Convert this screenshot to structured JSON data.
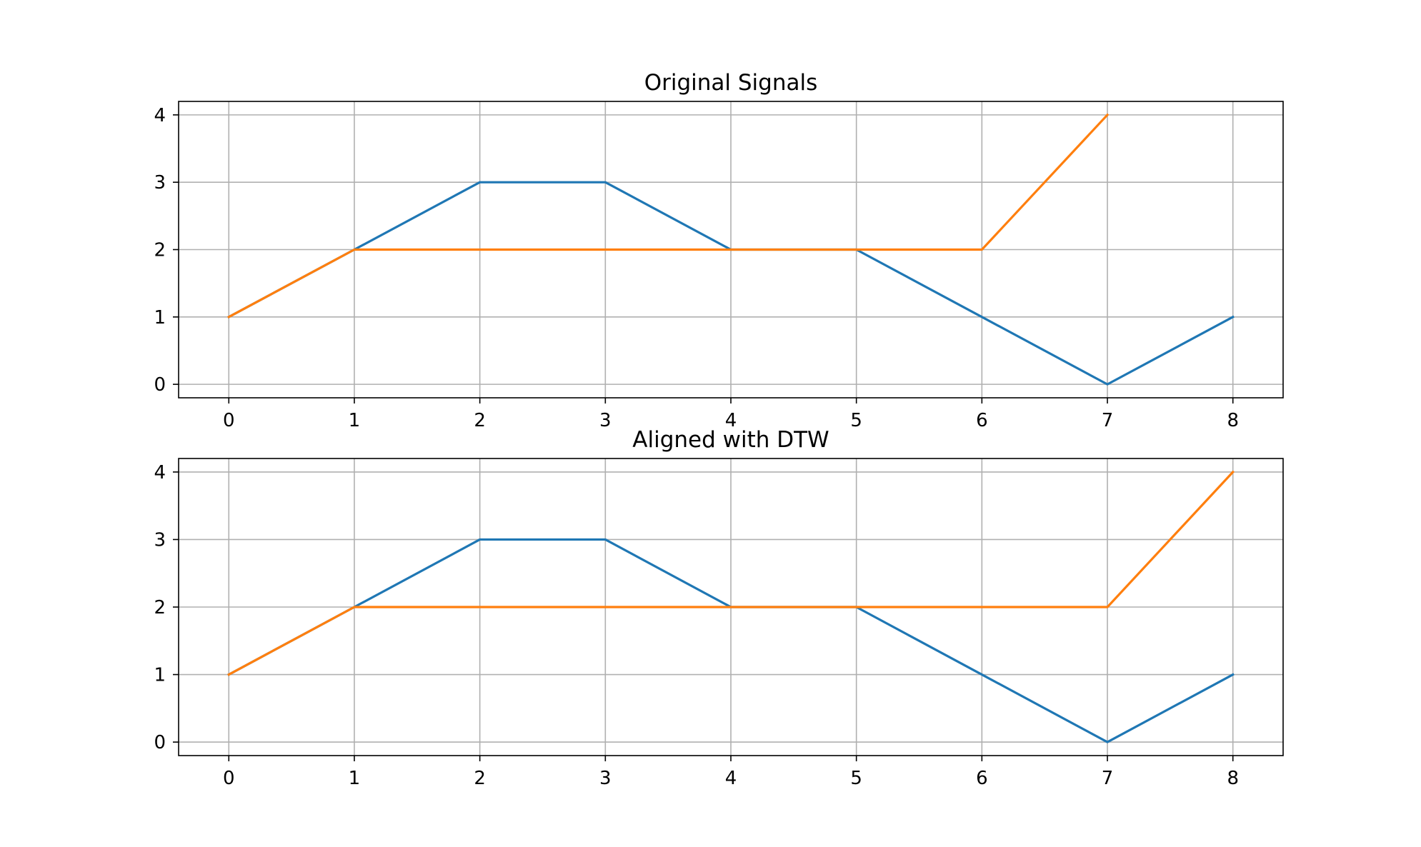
{
  "chart_data": [
    {
      "type": "line",
      "title": "Original Signals",
      "xlabel": "",
      "ylabel": "",
      "xlim": [
        -0.4,
        8.4
      ],
      "ylim": [
        -0.2,
        4.2
      ],
      "xticks": [
        0,
        1,
        2,
        3,
        4,
        5,
        6,
        7,
        8
      ],
      "yticks": [
        0,
        1,
        2,
        3,
        4
      ],
      "grid": true,
      "series": [
        {
          "color": "#1f77b4",
          "x": [
            0,
            1,
            2,
            3,
            4,
            5,
            6,
            7,
            8
          ],
          "y": [
            1,
            2,
            3,
            3,
            2,
            2,
            1,
            0,
            1
          ]
        },
        {
          "color": "#ff7f0e",
          "x": [
            0,
            1,
            2,
            3,
            4,
            5,
            6,
            7
          ],
          "y": [
            1,
            2,
            2,
            2,
            2,
            2,
            2,
            4
          ]
        }
      ]
    },
    {
      "type": "line",
      "title": "Aligned with DTW",
      "xlabel": "",
      "ylabel": "",
      "xlim": [
        -0.4,
        8.4
      ],
      "ylim": [
        -0.2,
        4.2
      ],
      "xticks": [
        0,
        1,
        2,
        3,
        4,
        5,
        6,
        7,
        8
      ],
      "yticks": [
        0,
        1,
        2,
        3,
        4
      ],
      "grid": true,
      "series": [
        {
          "color": "#1f77b4",
          "x": [
            0,
            1,
            2,
            3,
            4,
            5,
            6,
            7,
            8
          ],
          "y": [
            1,
            2,
            3,
            3,
            2,
            2,
            1,
            0,
            1
          ]
        },
        {
          "color": "#ff7f0e",
          "x": [
            0,
            1,
            2,
            3,
            4,
            5,
            6,
            7,
            8
          ],
          "y": [
            1,
            2,
            2,
            2,
            2,
            2,
            2,
            2,
            4
          ]
        }
      ]
    }
  ]
}
